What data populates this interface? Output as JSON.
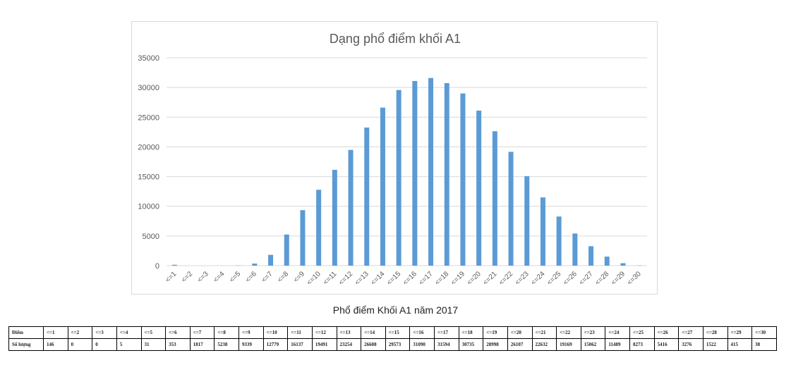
{
  "chart_data": {
    "type": "bar",
    "title": "Dạng phổ điểm khối A1",
    "categories": [
      "<=1",
      "<=2",
      "<=3",
      "<=4",
      "<=5",
      "<=6",
      "<=7",
      "<=8",
      "<=9",
      "<=10",
      "<=11",
      "<=12",
      "<=13",
      "<=14",
      "<=15",
      "<=16",
      "<=17",
      "<=18",
      "<=19",
      "<=20",
      "<=21",
      "<=22",
      "<=23",
      "<=24",
      "<=25",
      "<=26",
      "<=27",
      "<=28",
      "<=29",
      "<=30"
    ],
    "values": [
      146,
      0,
      0,
      5,
      31,
      353,
      1817,
      5238,
      9339,
      12779,
      16137,
      19491,
      23254,
      26608,
      29573,
      31090,
      31594,
      30735,
      28998,
      26107,
      22632,
      19169,
      15062,
      11489,
      8273,
      5416,
      3276,
      1522,
      415,
      38
    ],
    "ylim": [
      0,
      35000
    ],
    "yticks": [
      0,
      5000,
      10000,
      15000,
      20000,
      25000,
      30000,
      35000
    ],
    "grid": true,
    "legend": "none",
    "bar_color": "#5b9bd5"
  },
  "caption": "Phổ điểm Khối A1 năm 2017",
  "table": {
    "header_label": "Điểm",
    "row_label": "Số lượng"
  }
}
